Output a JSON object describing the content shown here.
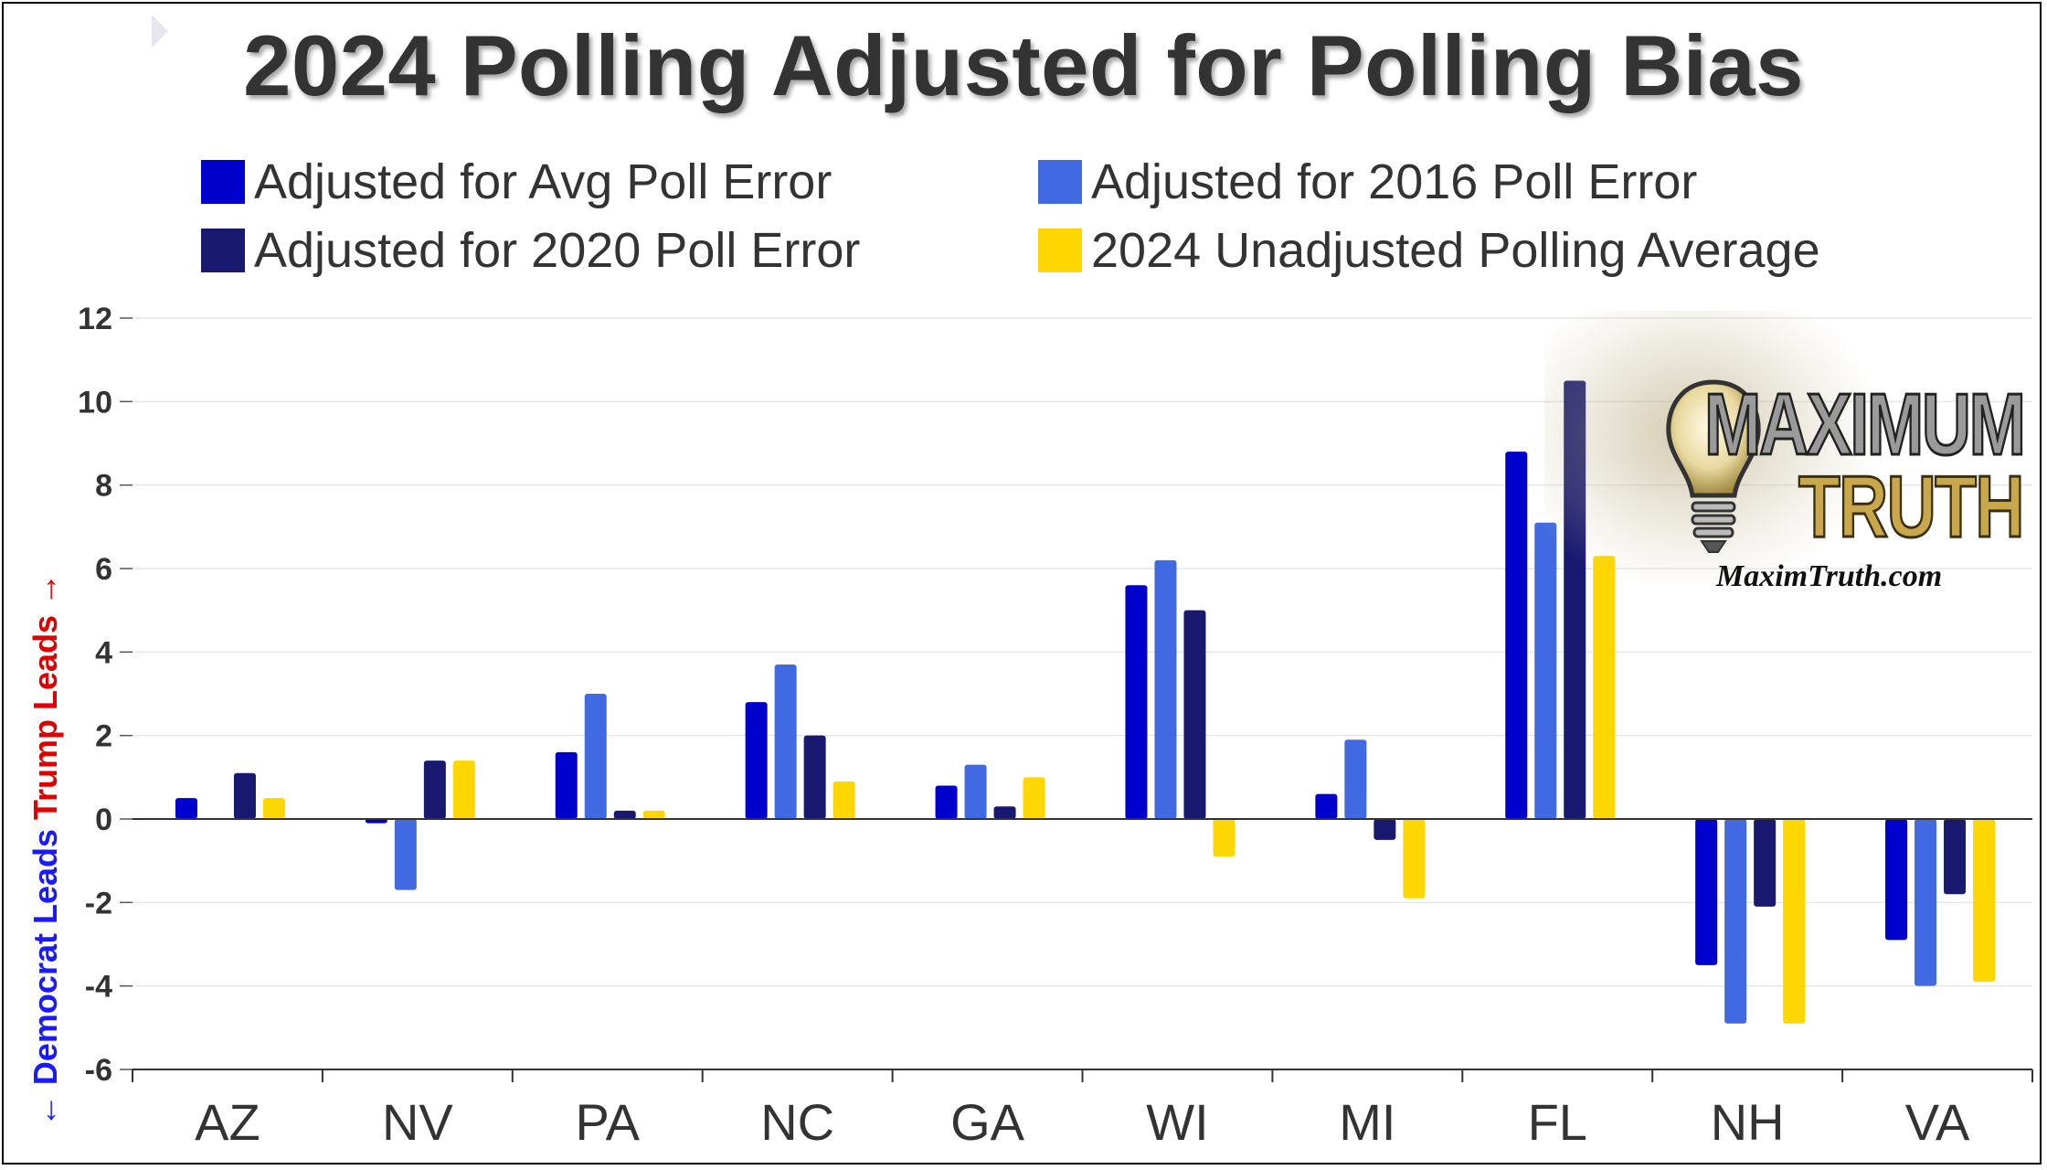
{
  "chart_data": {
    "type": "bar",
    "title": "2024 Polling Adjusted for Polling Bias",
    "ylabel_democrat": "← Democrat Leads",
    "ylabel_trump": "Trump Leads →",
    "categories": [
      "AZ",
      "NV",
      "PA",
      "NC",
      "GA",
      "WI",
      "MI",
      "FL",
      "NH",
      "VA"
    ],
    "ylim": [
      -6,
      12
    ],
    "yticks": [
      "-6",
      "-4",
      "-2",
      "0",
      "2",
      "4",
      "6",
      "8",
      "10",
      "12"
    ],
    "grid": true,
    "legend_position": "top",
    "series": [
      {
        "name": "Adjusted for Avg Poll Error",
        "color": "#0000cc",
        "values": [
          0.5,
          -0.1,
          1.6,
          2.8,
          0.8,
          5.6,
          0.6,
          8.8,
          -3.5,
          -2.9
        ]
      },
      {
        "name": "Adjusted for 2016 Poll Error",
        "color": "#4169e1",
        "values": [
          0.0,
          -1.7,
          3.0,
          3.7,
          1.3,
          6.2,
          1.9,
          7.1,
          -4.9,
          -4.0
        ]
      },
      {
        "name": "Adjusted for 2020 Poll Error",
        "color": "#191970",
        "values": [
          1.1,
          1.4,
          0.2,
          2.0,
          0.3,
          5.0,
          -0.5,
          10.5,
          -2.1,
          -1.8
        ]
      },
      {
        "name": "2024 Unadjusted Polling Average",
        "color": "#ffd700",
        "values": [
          0.5,
          1.4,
          0.2,
          0.9,
          1.0,
          -0.9,
          -1.9,
          6.3,
          -4.9,
          -3.9
        ]
      }
    ]
  },
  "logo": {
    "name_top": "MAXIMUM",
    "name_bottom": "TRUTH",
    "url": "MaximTruth.com"
  }
}
